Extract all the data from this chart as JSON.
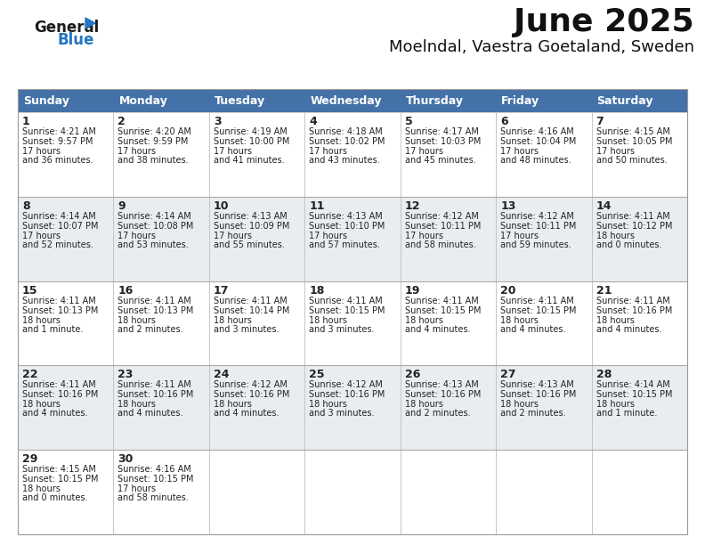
{
  "title": "June 2025",
  "subtitle": "Moelndal, Vaestra Goetaland, Sweden",
  "header_color": "#4472a8",
  "header_text_color": "#ffffff",
  "row_bg": [
    "#ffffff",
    "#e8edf2",
    "#ffffff",
    "#e8edf2",
    "#ffffff"
  ],
  "text_color": "#222222",
  "border_color": "#aaaaaa",
  "days_of_week": [
    "Sunday",
    "Monday",
    "Tuesday",
    "Wednesday",
    "Thursday",
    "Friday",
    "Saturday"
  ],
  "calendar_data": [
    [
      {
        "day": "1",
        "sunrise": "4:21 AM",
        "sunset": "9:57 PM",
        "daylight": "17 hours\nand 36 minutes."
      },
      {
        "day": "2",
        "sunrise": "4:20 AM",
        "sunset": "9:59 PM",
        "daylight": "17 hours\nand 38 minutes."
      },
      {
        "day": "3",
        "sunrise": "4:19 AM",
        "sunset": "10:00 PM",
        "daylight": "17 hours\nand 41 minutes."
      },
      {
        "day": "4",
        "sunrise": "4:18 AM",
        "sunset": "10:02 PM",
        "daylight": "17 hours\nand 43 minutes."
      },
      {
        "day": "5",
        "sunrise": "4:17 AM",
        "sunset": "10:03 PM",
        "daylight": "17 hours\nand 45 minutes."
      },
      {
        "day": "6",
        "sunrise": "4:16 AM",
        "sunset": "10:04 PM",
        "daylight": "17 hours\nand 48 minutes."
      },
      {
        "day": "7",
        "sunrise": "4:15 AM",
        "sunset": "10:05 PM",
        "daylight": "17 hours\nand 50 minutes."
      }
    ],
    [
      {
        "day": "8",
        "sunrise": "4:14 AM",
        "sunset": "10:07 PM",
        "daylight": "17 hours\nand 52 minutes."
      },
      {
        "day": "9",
        "sunrise": "4:14 AM",
        "sunset": "10:08 PM",
        "daylight": "17 hours\nand 53 minutes."
      },
      {
        "day": "10",
        "sunrise": "4:13 AM",
        "sunset": "10:09 PM",
        "daylight": "17 hours\nand 55 minutes."
      },
      {
        "day": "11",
        "sunrise": "4:13 AM",
        "sunset": "10:10 PM",
        "daylight": "17 hours\nand 57 minutes."
      },
      {
        "day": "12",
        "sunrise": "4:12 AM",
        "sunset": "10:11 PM",
        "daylight": "17 hours\nand 58 minutes."
      },
      {
        "day": "13",
        "sunrise": "4:12 AM",
        "sunset": "10:11 PM",
        "daylight": "17 hours\nand 59 minutes."
      },
      {
        "day": "14",
        "sunrise": "4:11 AM",
        "sunset": "10:12 PM",
        "daylight": "18 hours\nand 0 minutes."
      }
    ],
    [
      {
        "day": "15",
        "sunrise": "4:11 AM",
        "sunset": "10:13 PM",
        "daylight": "18 hours\nand 1 minute."
      },
      {
        "day": "16",
        "sunrise": "4:11 AM",
        "sunset": "10:13 PM",
        "daylight": "18 hours\nand 2 minutes."
      },
      {
        "day": "17",
        "sunrise": "4:11 AM",
        "sunset": "10:14 PM",
        "daylight": "18 hours\nand 3 minutes."
      },
      {
        "day": "18",
        "sunrise": "4:11 AM",
        "sunset": "10:15 PM",
        "daylight": "18 hours\nand 3 minutes."
      },
      {
        "day": "19",
        "sunrise": "4:11 AM",
        "sunset": "10:15 PM",
        "daylight": "18 hours\nand 4 minutes."
      },
      {
        "day": "20",
        "sunrise": "4:11 AM",
        "sunset": "10:15 PM",
        "daylight": "18 hours\nand 4 minutes."
      },
      {
        "day": "21",
        "sunrise": "4:11 AM",
        "sunset": "10:16 PM",
        "daylight": "18 hours\nand 4 minutes."
      }
    ],
    [
      {
        "day": "22",
        "sunrise": "4:11 AM",
        "sunset": "10:16 PM",
        "daylight": "18 hours\nand 4 minutes."
      },
      {
        "day": "23",
        "sunrise": "4:11 AM",
        "sunset": "10:16 PM",
        "daylight": "18 hours\nand 4 minutes."
      },
      {
        "day": "24",
        "sunrise": "4:12 AM",
        "sunset": "10:16 PM",
        "daylight": "18 hours\nand 4 minutes."
      },
      {
        "day": "25",
        "sunrise": "4:12 AM",
        "sunset": "10:16 PM",
        "daylight": "18 hours\nand 3 minutes."
      },
      {
        "day": "26",
        "sunrise": "4:13 AM",
        "sunset": "10:16 PM",
        "daylight": "18 hours\nand 2 minutes."
      },
      {
        "day": "27",
        "sunrise": "4:13 AM",
        "sunset": "10:16 PM",
        "daylight": "18 hours\nand 2 minutes."
      },
      {
        "day": "28",
        "sunrise": "4:14 AM",
        "sunset": "10:15 PM",
        "daylight": "18 hours\nand 1 minute."
      }
    ],
    [
      {
        "day": "29",
        "sunrise": "4:15 AM",
        "sunset": "10:15 PM",
        "daylight": "18 hours\nand 0 minutes."
      },
      {
        "day": "30",
        "sunrise": "4:16 AM",
        "sunset": "10:15 PM",
        "daylight": "17 hours\nand 58 minutes."
      },
      null,
      null,
      null,
      null,
      null
    ]
  ],
  "logo_color_general": "#1a1a1a",
  "logo_color_blue": "#2276c2",
  "logo_triangle_color": "#2276c2",
  "title_fontsize": 26,
  "subtitle_fontsize": 13,
  "header_fontsize": 9,
  "day_num_fontsize": 9,
  "cell_text_fontsize": 7
}
